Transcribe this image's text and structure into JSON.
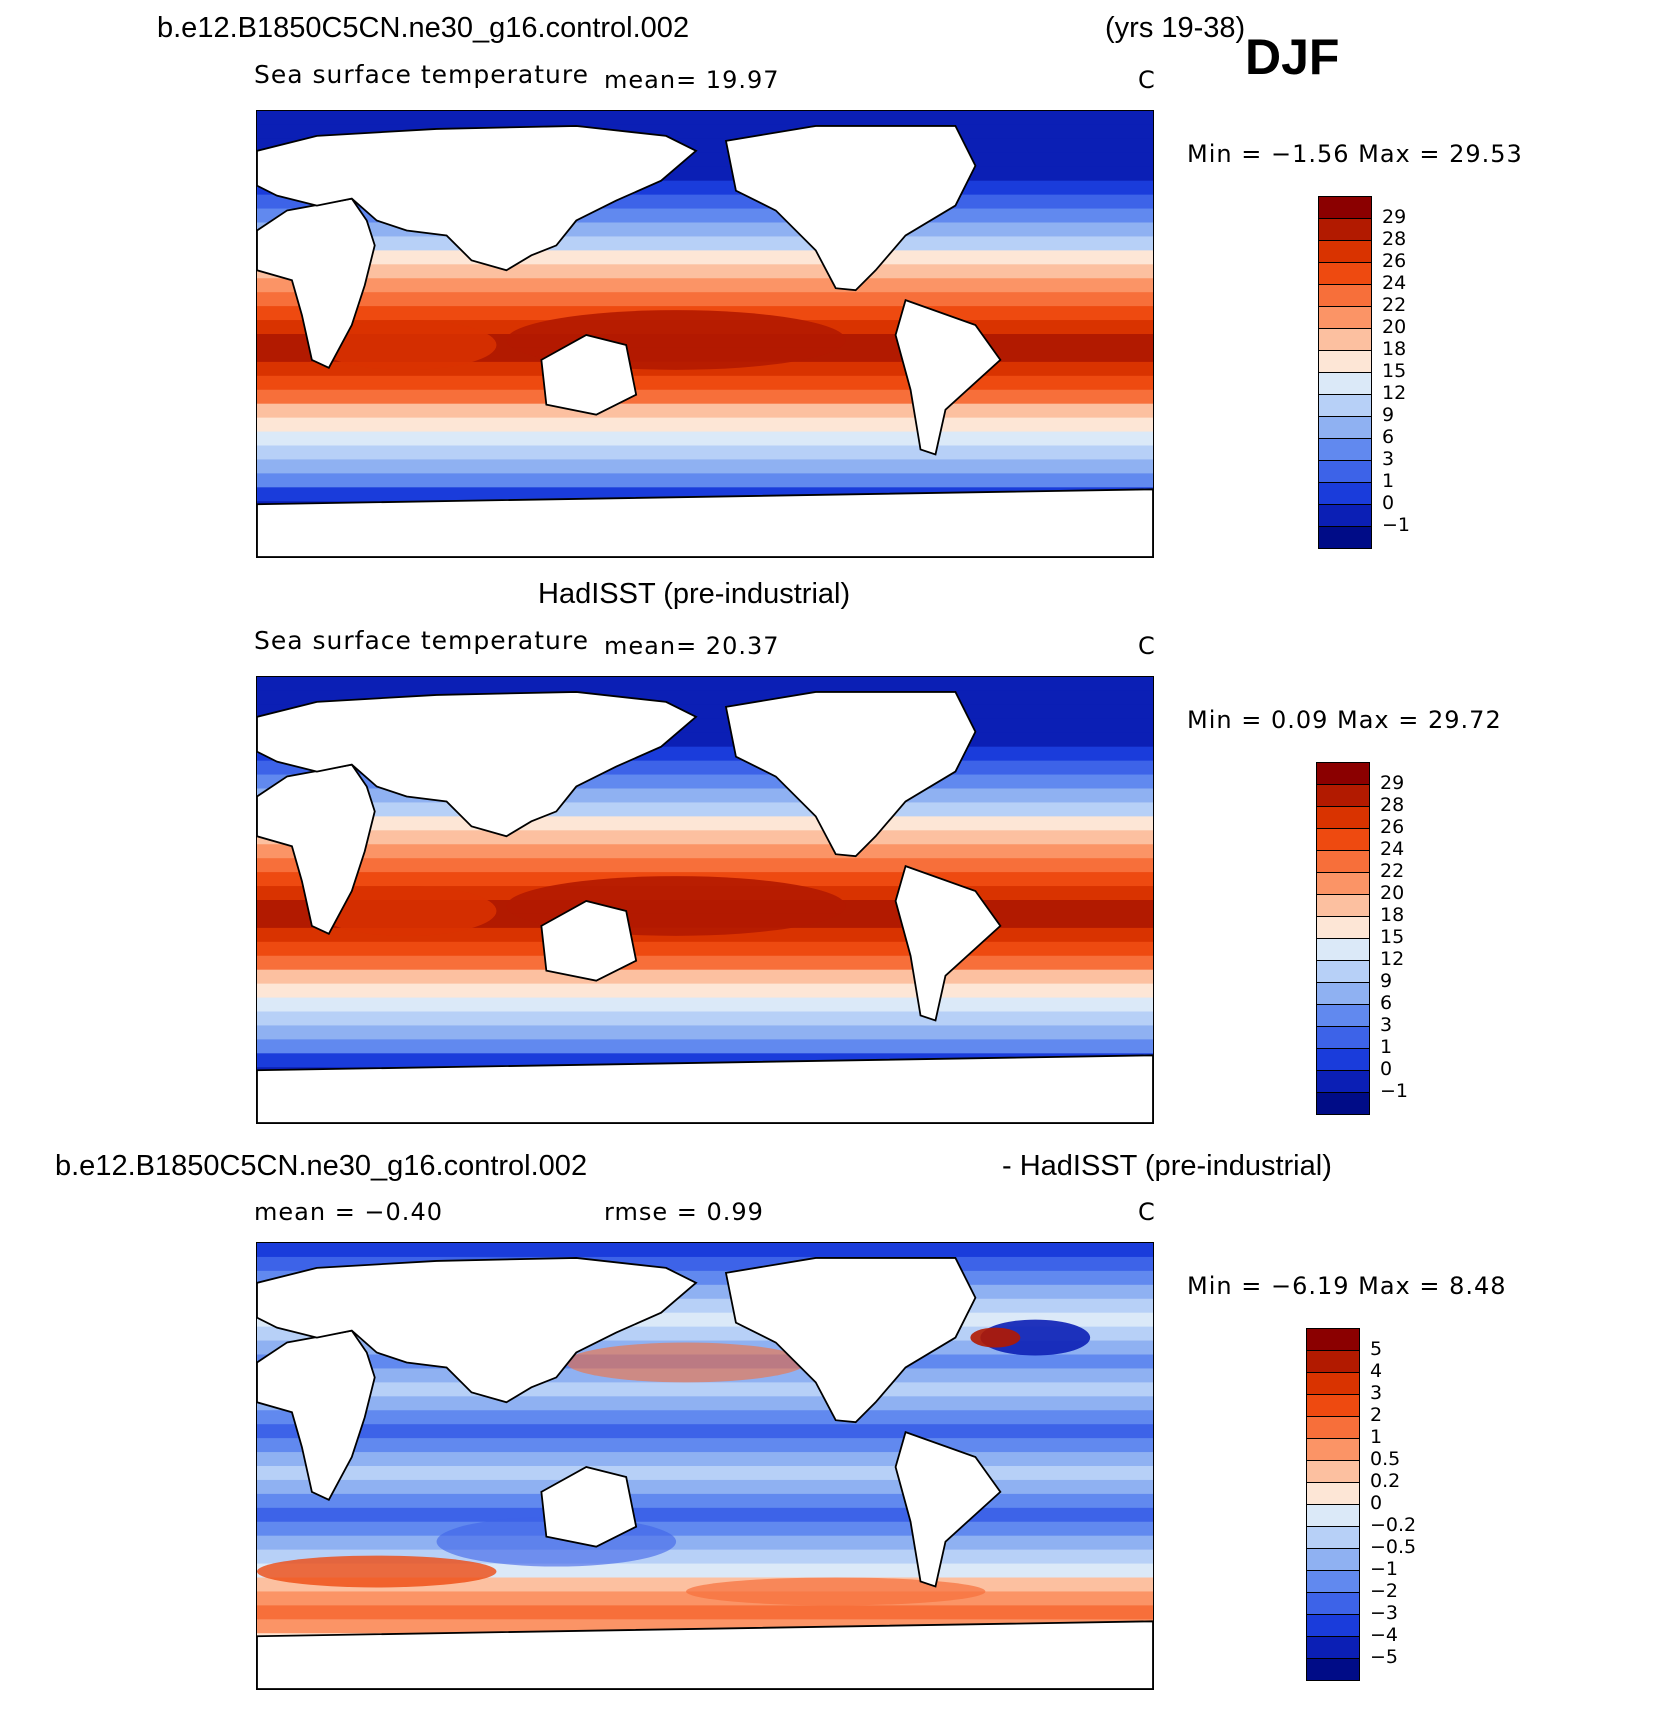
{
  "header": {
    "case_title": "b.e12.B1850C5CN.ne30_g16.control.002",
    "years": "(yrs 19-38)",
    "season": "DJF"
  },
  "panels": [
    {
      "title": "",
      "subtitle": "Sea surface temperature",
      "mean_text": "mean=   19.97",
      "units": "C",
      "minmax": "Min =   −1.56  Max =   29.53",
      "colorbar_labels": [
        "29",
        "28",
        "26",
        "24",
        "22",
        "20",
        "18",
        "15",
        "12",
        "9",
        "6",
        "3",
        "1",
        "0",
        "−1"
      ],
      "colorbar_colors": [
        "#8b0000",
        "#b21a00",
        "#d93300",
        "#ee4a10",
        "#f76f3a",
        "#fb9466",
        "#fcc0a0",
        "#fde6d6",
        "#dbe9f8",
        "#b7d0f7",
        "#8fb1f2",
        "#6189ef",
        "#3d63e8",
        "#1a3cdb",
        "#0b1fb5",
        "#000c87"
      ],
      "map": "model-djf-sst"
    },
    {
      "title": "HadISST (pre-industrial)",
      "subtitle": "Sea surface temperature",
      "mean_text": "mean=   20.37",
      "units": "C",
      "minmax": "Min =     0.09  Max =   29.72",
      "colorbar_labels": [
        "29",
        "28",
        "26",
        "24",
        "22",
        "20",
        "18",
        "15",
        "12",
        "9",
        "6",
        "3",
        "1",
        "0",
        "−1"
      ],
      "colorbar_colors": [
        "#8b0000",
        "#b21a00",
        "#d93300",
        "#ee4a10",
        "#f76f3a",
        "#fb9466",
        "#fcc0a0",
        "#fde6d6",
        "#dbe9f8",
        "#b7d0f7",
        "#8fb1f2",
        "#6189ef",
        "#3d63e8",
        "#1a3cdb",
        "#0b1fb5",
        "#000c87"
      ],
      "map": "obs-djf-sst"
    },
    {
      "title_left": "b.e12.B1850C5CN.ne30_g16.control.002",
      "title_right": "- HadISST (pre-industrial)",
      "mean_text": "mean =   −0.40",
      "rmse_text": "rmse =     0.99",
      "units": "C",
      "minmax": "Min =   −6.19  Max =     8.48",
      "colorbar_labels": [
        "5",
        "4",
        "3",
        "2",
        "1",
        "0.5",
        "0.2",
        "0",
        "−0.2",
        "−0.5",
        "−1",
        "−2",
        "−3",
        "−4",
        "−5"
      ],
      "colorbar_colors": [
        "#8b0000",
        "#b21a00",
        "#d93300",
        "#ee4a10",
        "#f76f3a",
        "#fb9466",
        "#fcc0a0",
        "#fde6d6",
        "#dbe9f8",
        "#b7d0f7",
        "#8fb1f2",
        "#6189ef",
        "#3d63e8",
        "#1a3cdb",
        "#0b1fb5",
        "#000c87"
      ],
      "map": "difference-djf-sst"
    }
  ]
}
